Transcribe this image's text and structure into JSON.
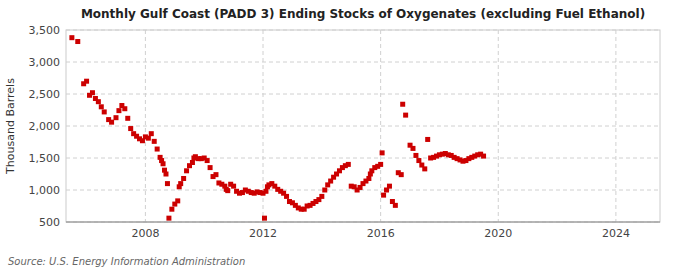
{
  "chart_data": {
    "type": "scatter",
    "title": "Monthly Gulf Coast (PADD 3) Ending Stocks of Oxygenates (excluding Fuel Ethanol)",
    "ylabel": "Thousand Barrels",
    "source": "Source: U.S. Energy Information Administration",
    "color": "#cc0000",
    "marker": "square",
    "grid": true,
    "xlim": [
      2005.3,
      2025.5
    ],
    "ylim": [
      500,
      3500
    ],
    "xticks": [
      2008,
      2012,
      2016,
      2020,
      2024
    ],
    "yticks": [
      500,
      {
        "value": 1000,
        "label": "1,000"
      },
      {
        "value": 1500,
        "label": "1,500"
      },
      {
        "value": 2000,
        "label": "2,000"
      },
      {
        "value": 2500,
        "label": "2,500"
      },
      {
        "value": 3000,
        "label": "3,000"
      },
      {
        "value": 3500,
        "label": "3,500"
      }
    ],
    "x": [
      2005.5,
      2005.7,
      2005.9,
      2006.0,
      2006.1,
      2006.2,
      2006.3,
      2006.4,
      2006.5,
      2006.6,
      2006.75,
      2006.85,
      2007.0,
      2007.1,
      2007.2,
      2007.3,
      2007.4,
      2007.5,
      2007.6,
      2007.7,
      2007.8,
      2007.9,
      2008.0,
      2008.1,
      2008.2,
      2008.3,
      2008.4,
      2008.5,
      2008.55,
      2008.6,
      2008.65,
      2008.7,
      2008.75,
      2008.8,
      2008.9,
      2009.0,
      2009.1,
      2009.15,
      2009.2,
      2009.3,
      2009.4,
      2009.5,
      2009.6,
      2009.65,
      2009.7,
      2009.8,
      2009.9,
      2010.0,
      2010.1,
      2010.2,
      2010.3,
      2010.4,
      2010.5,
      2010.6,
      2010.7,
      2010.75,
      2010.8,
      2010.9,
      2011.0,
      2011.1,
      2011.2,
      2011.3,
      2011.4,
      2011.5,
      2011.6,
      2011.7,
      2011.8,
      2011.9,
      2012.0,
      2012.05,
      2012.1,
      2012.15,
      2012.2,
      2012.3,
      2012.4,
      2012.5,
      2012.6,
      2012.7,
      2012.8,
      2012.9,
      2013.0,
      2013.1,
      2013.2,
      2013.3,
      2013.4,
      2013.5,
      2013.6,
      2013.7,
      2013.8,
      2013.9,
      2014.0,
      2014.1,
      2014.2,
      2014.3,
      2014.4,
      2014.5,
      2014.6,
      2014.7,
      2014.8,
      2014.9,
      2015.0,
      2015.1,
      2015.2,
      2015.3,
      2015.4,
      2015.5,
      2015.6,
      2015.65,
      2015.7,
      2015.8,
      2015.9,
      2016.0,
      2016.05,
      2016.1,
      2016.2,
      2016.3,
      2016.4,
      2016.5,
      2016.6,
      2016.7,
      2016.75,
      2016.85,
      2017.0,
      2017.1,
      2017.2,
      2017.3,
      2017.4,
      2017.5,
      2017.6,
      2017.7,
      2017.8,
      2017.9,
      2018.0,
      2018.1,
      2018.2,
      2018.3,
      2018.4,
      2018.5,
      2018.6,
      2018.7,
      2018.8,
      2018.9,
      2019.0,
      2019.1,
      2019.2,
      2019.3,
      2019.4,
      2019.5
    ],
    "values": [
      3380,
      3320,
      2660,
      2700,
      2480,
      2520,
      2430,
      2380,
      2300,
      2220,
      2100,
      2060,
      2130,
      2240,
      2320,
      2270,
      2120,
      1960,
      1880,
      1840,
      1800,
      1770,
      1830,
      1810,
      1880,
      1760,
      1640,
      1510,
      1460,
      1410,
      1310,
      1250,
      1100,
      560,
      700,
      780,
      830,
      1050,
      1100,
      1180,
      1300,
      1380,
      1430,
      1500,
      1520,
      1490,
      1490,
      1500,
      1460,
      1350,
      1210,
      1240,
      1110,
      1090,
      1060,
      1010,
      990,
      1090,
      1060,
      980,
      950,
      960,
      1000,
      980,
      960,
      950,
      970,
      960,
      950,
      560,
      980,
      1050,
      1080,
      1100,
      1060,
      1010,
      980,
      950,
      900,
      820,
      800,
      760,
      720,
      700,
      700,
      750,
      760,
      790,
      820,
      850,
      900,
      1000,
      1080,
      1140,
      1200,
      1250,
      1300,
      1350,
      1380,
      1400,
      1060,
      1050,
      1000,
      1040,
      1100,
      1140,
      1180,
      1250,
      1300,
      1350,
      1370,
      1400,
      1580,
      920,
      1000,
      1060,
      820,
      760,
      1270,
      1240,
      2340,
      2170,
      1700,
      1650,
      1540,
      1460,
      1390,
      1330,
      1790,
      1500,
      1510,
      1530,
      1550,
      1560,
      1570,
      1550,
      1540,
      1510,
      1490,
      1470,
      1450,
      1460,
      1490,
      1510,
      1530,
      1550,
      1560,
      1530
    ]
  }
}
